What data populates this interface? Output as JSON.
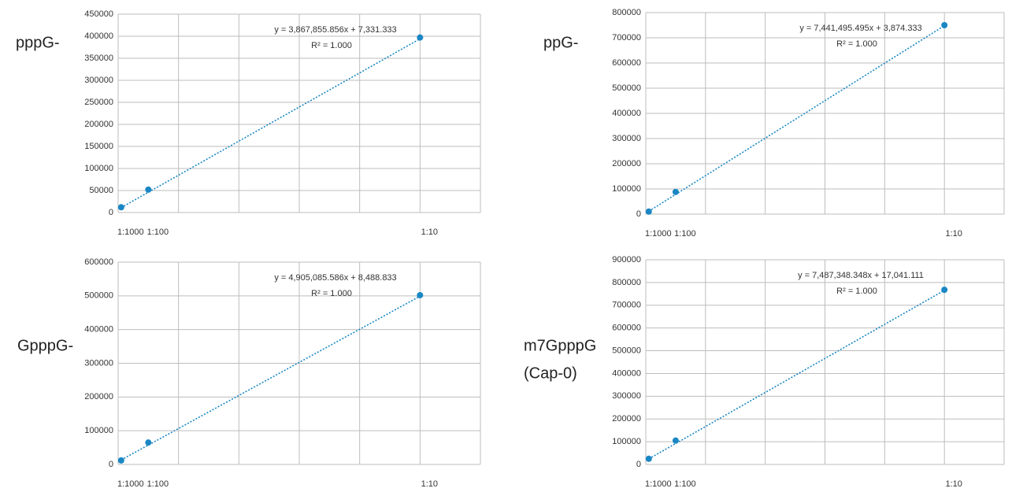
{
  "chart_data": [
    {
      "type": "scatter",
      "title": "pppG-",
      "x": [
        0.001,
        0.01,
        0.1
      ],
      "values": [
        12000,
        52000,
        397000
      ],
      "color": "#1a87c4",
      "xlim": [
        0,
        0.12
      ],
      "xticks": [
        {
          "value": 0.001,
          "label": "1:1000"
        },
        {
          "value": 0.01,
          "label": "1:100"
        },
        {
          "value": 0.1,
          "label": "1:10"
        }
      ],
      "xgrid": [
        0,
        0.02,
        0.04,
        0.06,
        0.08,
        0.1,
        0.12
      ],
      "ylim": [
        0,
        450000
      ],
      "yticks": [
        0,
        50000,
        100000,
        150000,
        200000,
        250000,
        300000,
        350000,
        400000,
        450000
      ],
      "grid": true,
      "trendline": {
        "equation": "y = 3,867,855.856x + 7,331.333",
        "r2": "R² = 1.000",
        "slope": 3867855.856,
        "intercept": 7331.333
      }
    },
    {
      "type": "scatter",
      "title": "ppG-",
      "x": [
        0.001,
        0.01,
        0.1
      ],
      "values": [
        10000,
        88000,
        750000
      ],
      "color": "#1a87c4",
      "xlim": [
        0,
        0.12
      ],
      "xticks": [
        {
          "value": 0.001,
          "label": "1:1000"
        },
        {
          "value": 0.01,
          "label": "1:100"
        },
        {
          "value": 0.1,
          "label": "1:10"
        }
      ],
      "xgrid": [
        0,
        0.02,
        0.04,
        0.06,
        0.08,
        0.1,
        0.12
      ],
      "ylim": [
        0,
        800000
      ],
      "yticks": [
        0,
        100000,
        200000,
        300000,
        400000,
        500000,
        600000,
        700000,
        800000
      ],
      "grid": true,
      "trendline": {
        "equation": "y = 7,441,495.495x + 3,874.333",
        "r2": "R² = 1.000",
        "slope": 7441495.495,
        "intercept": 3874.333
      }
    },
    {
      "type": "scatter",
      "title": "GpppG-",
      "x": [
        0.001,
        0.01,
        0.1
      ],
      "values": [
        12000,
        65000,
        502000
      ],
      "color": "#1a87c4",
      "xlim": [
        0,
        0.12
      ],
      "xticks": [
        {
          "value": 0.001,
          "label": "1:1000"
        },
        {
          "value": 0.01,
          "label": "1:100"
        },
        {
          "value": 0.1,
          "label": "1:10"
        }
      ],
      "xgrid": [
        0,
        0.02,
        0.04,
        0.06,
        0.08,
        0.1,
        0.12
      ],
      "ylim": [
        0,
        600000
      ],
      "yticks": [
        0,
        100000,
        200000,
        300000,
        400000,
        500000,
        600000
      ],
      "grid": true,
      "trendline": {
        "equation": "y = 4,905,085.586x + 8,488.833",
        "r2": "R² = 1.000",
        "slope": 4905085.586,
        "intercept": 8488.833
      }
    },
    {
      "type": "scatter",
      "title": "m7GpppG",
      "subtitle": "(Cap-0)",
      "x": [
        0.001,
        0.01,
        0.1
      ],
      "values": [
        25000,
        105000,
        768000
      ],
      "color": "#1a87c4",
      "xlim": [
        0,
        0.12
      ],
      "xticks": [
        {
          "value": 0.001,
          "label": "1:1000"
        },
        {
          "value": 0.01,
          "label": "1:100"
        },
        {
          "value": 0.1,
          "label": "1:10"
        }
      ],
      "xgrid": [
        0,
        0.02,
        0.04,
        0.06,
        0.08,
        0.1,
        0.12
      ],
      "ylim": [
        0,
        900000
      ],
      "yticks": [
        0,
        100000,
        200000,
        300000,
        400000,
        500000,
        600000,
        700000,
        800000,
        900000
      ],
      "grid": true,
      "trendline": {
        "equation": "y = 7,487,348.348x + 17,041.111",
        "r2": "R² = 1.000",
        "slope": 7487348.348,
        "intercept": 17041.111
      }
    }
  ]
}
